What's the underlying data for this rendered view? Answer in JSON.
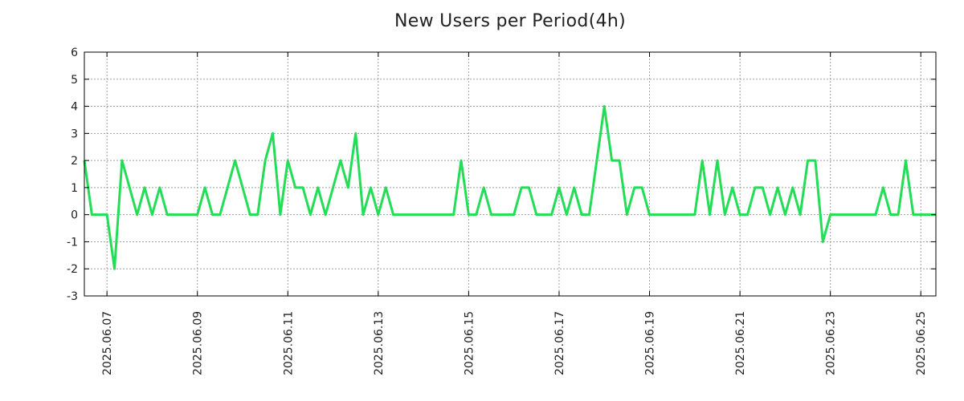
{
  "chart_data": {
    "type": "line",
    "title": "New Users per Period(4h)",
    "xlabel": "",
    "ylabel": "",
    "ylim": [
      -3,
      6
    ],
    "yticks": [
      -3,
      -2,
      -1,
      0,
      1,
      2,
      3,
      4,
      5,
      6
    ],
    "xlim": [
      "2025.06.06 12:00",
      "2025.06.25 08:00"
    ],
    "xtick_labels": [
      "2025.06.07",
      "2025.06.09",
      "2025.06.11",
      "2025.06.13",
      "2025.06.15",
      "2025.06.17",
      "2025.06.19",
      "2025.06.21",
      "2025.06.23",
      "2025.06.25"
    ],
    "grid": true,
    "line_color": "#22dd55",
    "series": [
      {
        "interval_hours": 4,
        "x_start": "2025.06.06 12:00",
        "values": [
          2,
          0,
          0,
          0,
          -2,
          2,
          1,
          0,
          1,
          0,
          1,
          0,
          0,
          0,
          0,
          0,
          1,
          0,
          0,
          1,
          2,
          1,
          0,
          0,
          2,
          3,
          0,
          2,
          1,
          1,
          0,
          1,
          0,
          1,
          2,
          1,
          3,
          0,
          1,
          0,
          1,
          0,
          0,
          0,
          0,
          0,
          0,
          0,
          0,
          0,
          2,
          0,
          0,
          1,
          0,
          0,
          0,
          0,
          1,
          1,
          0,
          0,
          0,
          1,
          0,
          1,
          0,
          0,
          2,
          4,
          2,
          2,
          0,
          1,
          1,
          0,
          0,
          0,
          0,
          0,
          0,
          0,
          2,
          0,
          2,
          0,
          1,
          0,
          0,
          1,
          1,
          0,
          1,
          0,
          1,
          0,
          2,
          2,
          -1,
          0,
          0,
          0,
          0,
          0,
          0,
          0,
          1,
          0,
          0,
          2,
          0,
          0,
          0,
          0,
          0,
          0,
          0,
          0,
          0,
          0,
          0,
          0,
          0,
          0
        ]
      }
    ]
  }
}
